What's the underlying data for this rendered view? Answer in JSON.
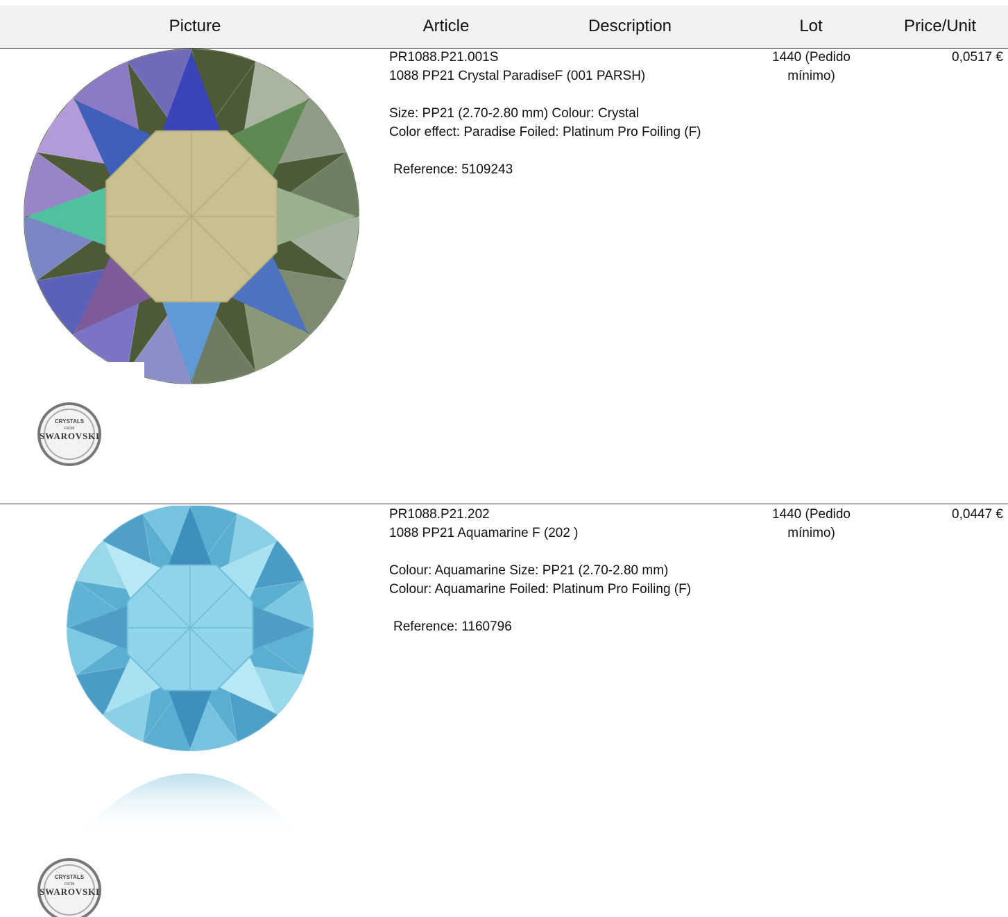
{
  "header": {
    "picture": "Picture",
    "article": "Article",
    "description": "Description",
    "lot": "Lot",
    "price": "Price/Unit"
  },
  "rows": [
    {
      "article": "PR1088.P21.001S",
      "name": "1088 PP21 Crystal ParadiseF (001 PARSH)",
      "details": [
        "Size: PP21 (2.70-2.80 mm) Colour: Crystal",
        "Color effect: Paradise Foiled: Platinum Pro Foiling (F)"
      ],
      "reference": "Reference: 5109243",
      "lot": "1440 (Pedido mínimo)",
      "price": "0,0517 €",
      "logo": {
        "top": "CRYSTALS",
        "middle": "FROM",
        "brand": "SWAROVSKI"
      }
    },
    {
      "article": "PR1088.P21.202",
      "name": "1088 PP21 Aquamarine F (202 )",
      "details": [
        "Colour: Aquamarine Size: PP21 (2.70-2.80 mm)",
        "Colour: Aquamarine Foiled: Platinum Pro Foiling (F)"
      ],
      "reference": "Reference: 1160796",
      "lot": "1440 (Pedido mínimo)",
      "price": "0,0447 €",
      "logo": {
        "top": "CRYSTALS",
        "middle": "FROM",
        "brand": "SWAROVSKI"
      }
    }
  ]
}
